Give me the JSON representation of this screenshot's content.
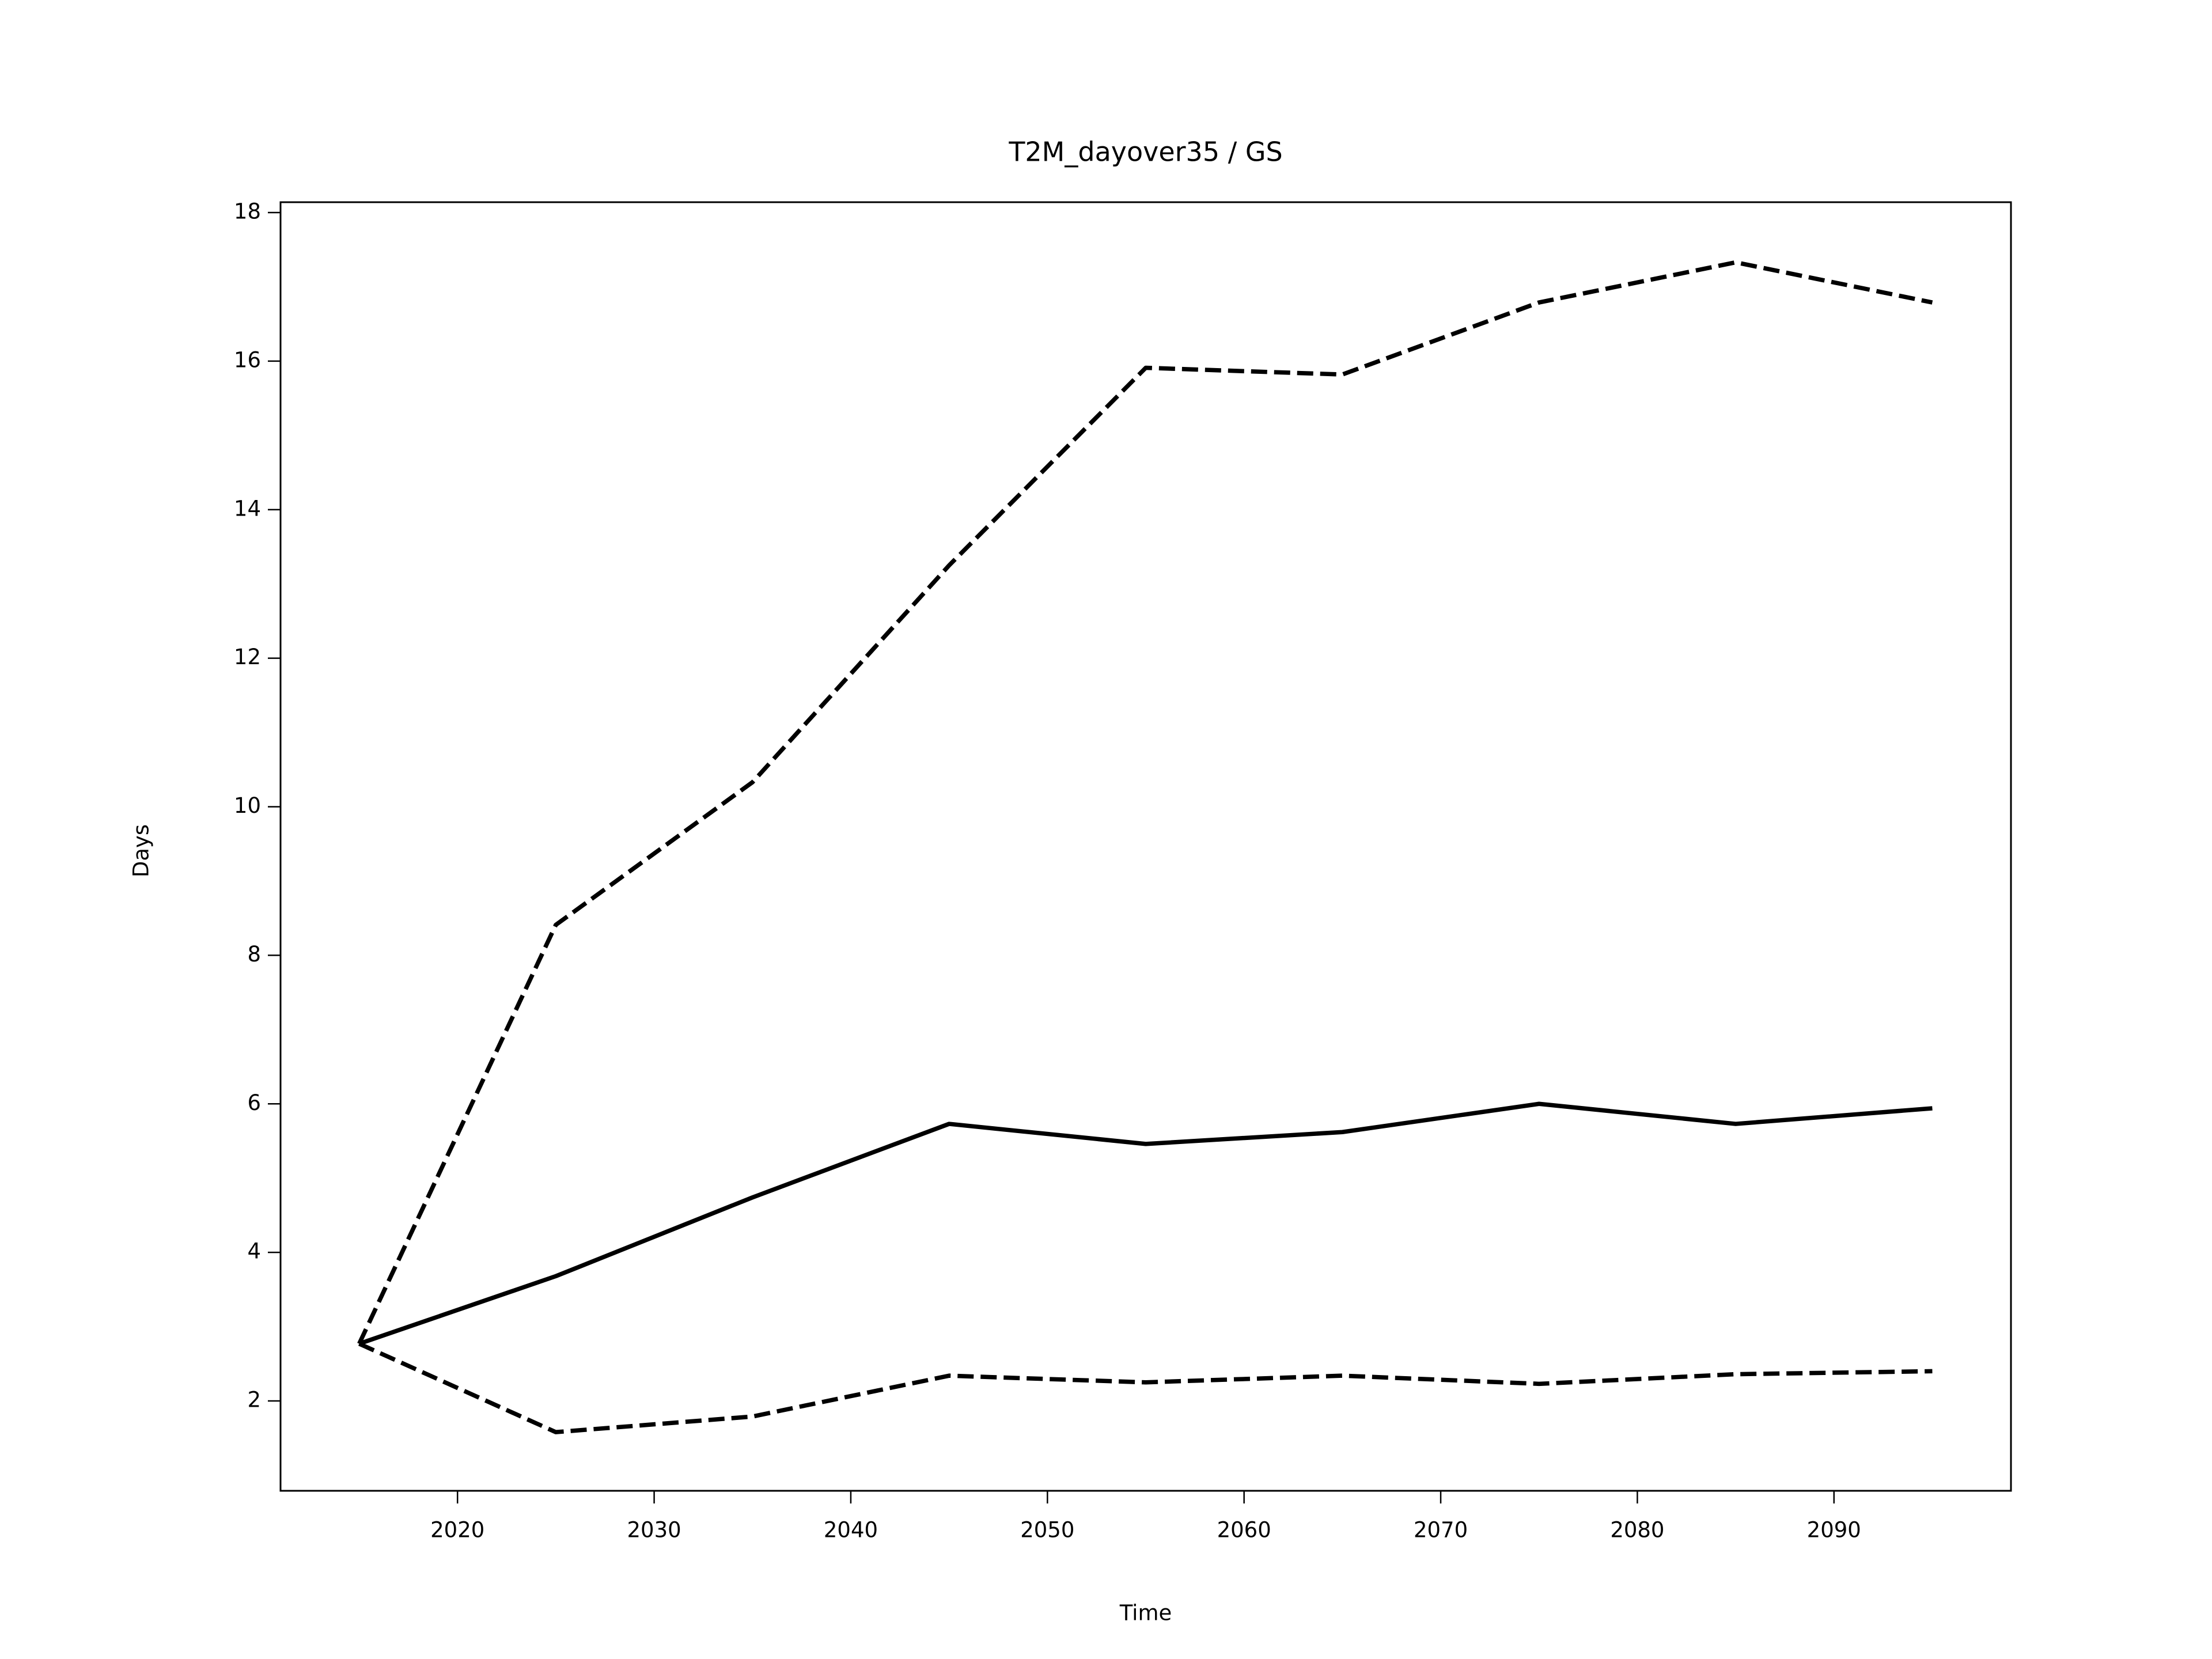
{
  "chart_data": {
    "type": "line",
    "title": "T2M_dayover35 / GS",
    "xlabel": "Time",
    "ylabel": "Days",
    "x": [
      2015,
      2025,
      2035,
      2045,
      2055,
      2065,
      2075,
      2085,
      2095
    ],
    "series": [
      {
        "color": "#000000",
        "dash": false,
        "values": [
          2.77,
          3.68,
          4.74,
          5.73,
          5.46,
          5.62,
          6.0,
          5.73,
          5.94
        ]
      },
      {
        "color": "#000000",
        "dash": true,
        "values": [
          2.77,
          8.41,
          10.33,
          13.25,
          15.91,
          15.82,
          16.79,
          17.33,
          16.79
        ]
      },
      {
        "color": "#000000",
        "dash": true,
        "values": [
          2.77,
          1.58,
          1.79,
          2.34,
          2.25,
          2.34,
          2.23,
          2.36,
          2.4
        ]
      }
    ],
    "xlim": [
      2011,
      2099
    ],
    "ylim": [
      0.79,
      18.14
    ],
    "xticks": [
      2020,
      2030,
      2040,
      2050,
      2060,
      2070,
      2080,
      2090
    ],
    "yticks": [
      2,
      4,
      6,
      8,
      10,
      12,
      14,
      16,
      18
    ],
    "grid": false
  }
}
